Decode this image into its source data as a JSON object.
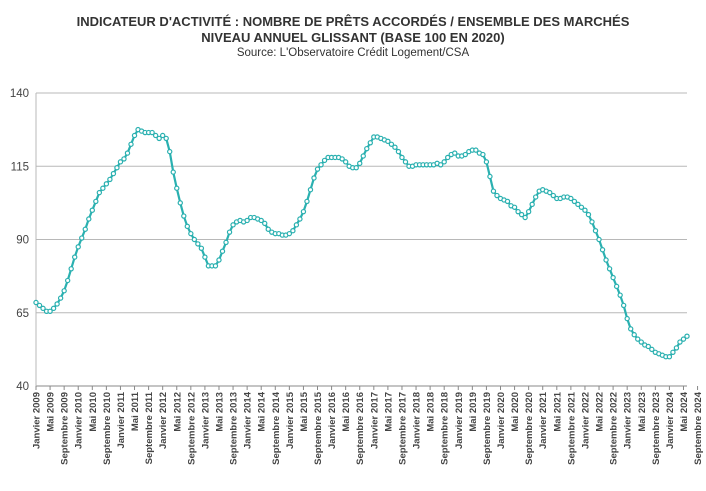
{
  "title": "INDICATEUR D'ACTIVITÉ : NOMBRE DE PRÊTS ACCORDÉS / ENSEMBLE DES MARCHÉS",
  "subtitle": "NIVEAU ANNUEL GLISSANT (BASE 100 EN 2020)",
  "source": "Source: L'Observatoire Crédit Logement/CSA",
  "colors": {
    "line": "#2ab0b0",
    "grid": "#b8b8b8",
    "axis": "#888888"
  },
  "chart_data": {
    "type": "line",
    "title": "INDICATEUR D'ACTIVITÉ : NOMBRE DE PRÊTS ACCORDÉS / ENSEMBLE DES MARCHÉS",
    "subtitle": "NIVEAU ANNUEL GLISSANT (BASE 100 EN 2020)",
    "xlabel": "",
    "ylabel": "",
    "ylim": [
      40,
      140
    ],
    "yticks": [
      40,
      65,
      90,
      115,
      140
    ],
    "grid": true,
    "legend": "none",
    "x_start": "Janvier 2009",
    "x_end": "Septembre 2024",
    "x_tick_labels": [
      "Janvier 2009",
      "Mai 2009",
      "Septembre 2009",
      "Janvier 2010",
      "Mai 2010",
      "Septembre 2010",
      "Janvier 2011",
      "Mai 2011",
      "Septembre 2011",
      "Janvier 2012",
      "Mai 2012",
      "Septembre 2012",
      "Janvier 2013",
      "Mai 2013",
      "Septembre 2013",
      "Janvier 2014",
      "Mai 2014",
      "Septembre 2014",
      "Janvier 2015",
      "Mai 2015",
      "Septembre 2015",
      "Janvier 2016",
      "Mai 2016",
      "Septembre 2016",
      "Janvier 2017",
      "Mai 2017",
      "Septembre 2017",
      "Janvier 2018",
      "Mai 2018",
      "Septembre 2018",
      "Janvier 2019",
      "Mai 2019",
      "Septembre 2019",
      "Janvier 2020",
      "Mai 2020",
      "Septembre 2020",
      "Janvier 2021",
      "Mai 2021",
      "Septembre 2021",
      "Janvier 2022",
      "Mai 2022",
      "Septembre 2022",
      "Janvier 2023",
      "Mai 2023",
      "Septembre 2023",
      "Janvier 2024",
      "Mai 2024",
      "Septembre 2024"
    ],
    "values": [
      68.5,
      67.5,
      66.5,
      65.5,
      65.5,
      66.5,
      68,
      70,
      72.5,
      76,
      80,
      84,
      87.5,
      90.5,
      93.5,
      97,
      100,
      103,
      106,
      107.5,
      109,
      110.5,
      112.5,
      114.5,
      116.5,
      117.5,
      119.5,
      122.5,
      125.5,
      127.5,
      127,
      126.5,
      126.5,
      126.5,
      125.5,
      124.5,
      125.5,
      124.5,
      120,
      113,
      107.5,
      102.5,
      98,
      94.5,
      92,
      90,
      88.5,
      87,
      84,
      81,
      81,
      81,
      83,
      86,
      89,
      92.5,
      95,
      96,
      96.5,
      96,
      96.5,
      97.5,
      97.5,
      97,
      96.5,
      95.5,
      93.5,
      92.5,
      92,
      92,
      91.5,
      91.5,
      92,
      93,
      95,
      97,
      99.5,
      103,
      107,
      111,
      114,
      115.5,
      117,
      118,
      118,
      118,
      118,
      117.5,
      116.5,
      115,
      114.5,
      114.5,
      116,
      118.5,
      121,
      123,
      125,
      125,
      124.5,
      124,
      123.5,
      122.5,
      121.5,
      120,
      118,
      116.5,
      115,
      115,
      115.5,
      115.5,
      115.5,
      115.5,
      115.5,
      115.5,
      116,
      115.5,
      116.5,
      118,
      119,
      119.5,
      118.5,
      118.5,
      119,
      120,
      120.5,
      120.5,
      119.5,
      119,
      116.5,
      111.5,
      106.5,
      105,
      104,
      103.5,
      103,
      101.5,
      101,
      99.5,
      98.5,
      97.5,
      99.5,
      102,
      104.5,
      106.5,
      107,
      106.5,
      106,
      105,
      104,
      104,
      104.5,
      104.5,
      104,
      103,
      102,
      101,
      100,
      98.5,
      96,
      93,
      90,
      86.5,
      83,
      80,
      77,
      74,
      71,
      67.5,
      63,
      59.5,
      57.5,
      56,
      55,
      54,
      53.5,
      52.5,
      51.5,
      51,
      50.5,
      50,
      50,
      51.5,
      53,
      55,
      56,
      57
    ]
  }
}
